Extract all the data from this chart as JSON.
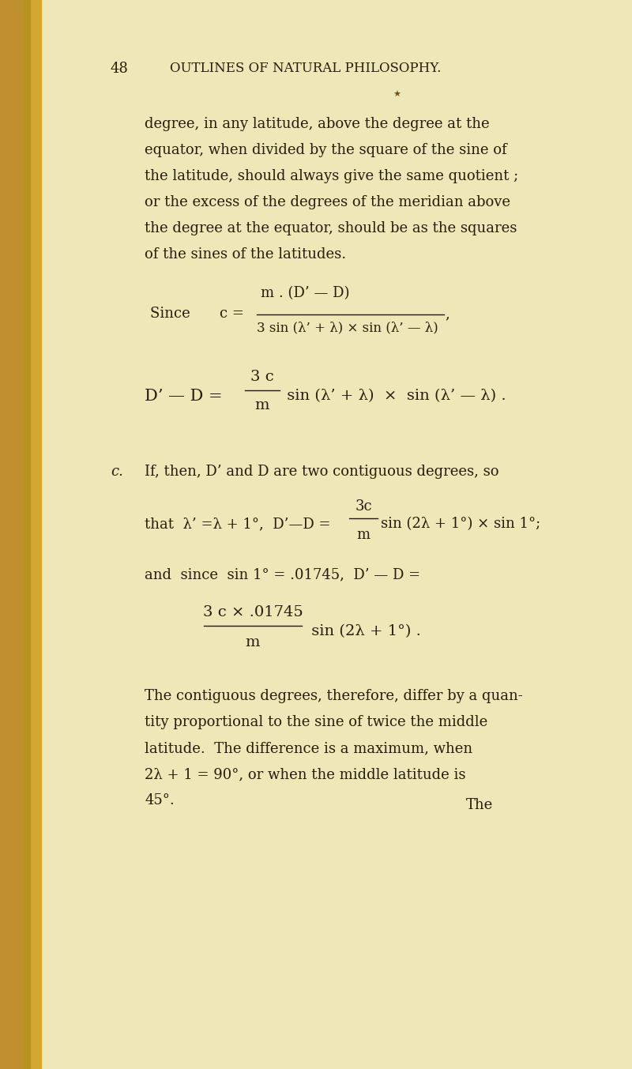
{
  "bg_color": "#eee8b8",
  "left_spine_color1": "#d4a830",
  "left_spine_color2": "#b8941e",
  "text_color": "#2a1a08",
  "page_number": "48",
  "header": "OUTLINES OF NATURAL PHILOSOPHY.",
  "para1_lines": [
    "degree, in any latitude, above the degree at the",
    "equator, when divided by the square of the sine of",
    "the latitude, should always give the same quotient ;",
    "or the excess of the degrees of the meridian above",
    "the degree at the equator, should be as the squares",
    "of the sines of the latitudes."
  ],
  "para2_lines": [
    "If, then, D’ and D are two contiguous degrees, so"
  ],
  "para3_lines": [
    "The contiguous degrees, therefore, differ by a quan-",
    "tity proportional to the sine of twice the middle",
    "latitude.  The difference is a maximum, when",
    "2λ + 1 = 90°, or when the middle latitude is",
    "45°."
  ],
  "footer_word": "The"
}
